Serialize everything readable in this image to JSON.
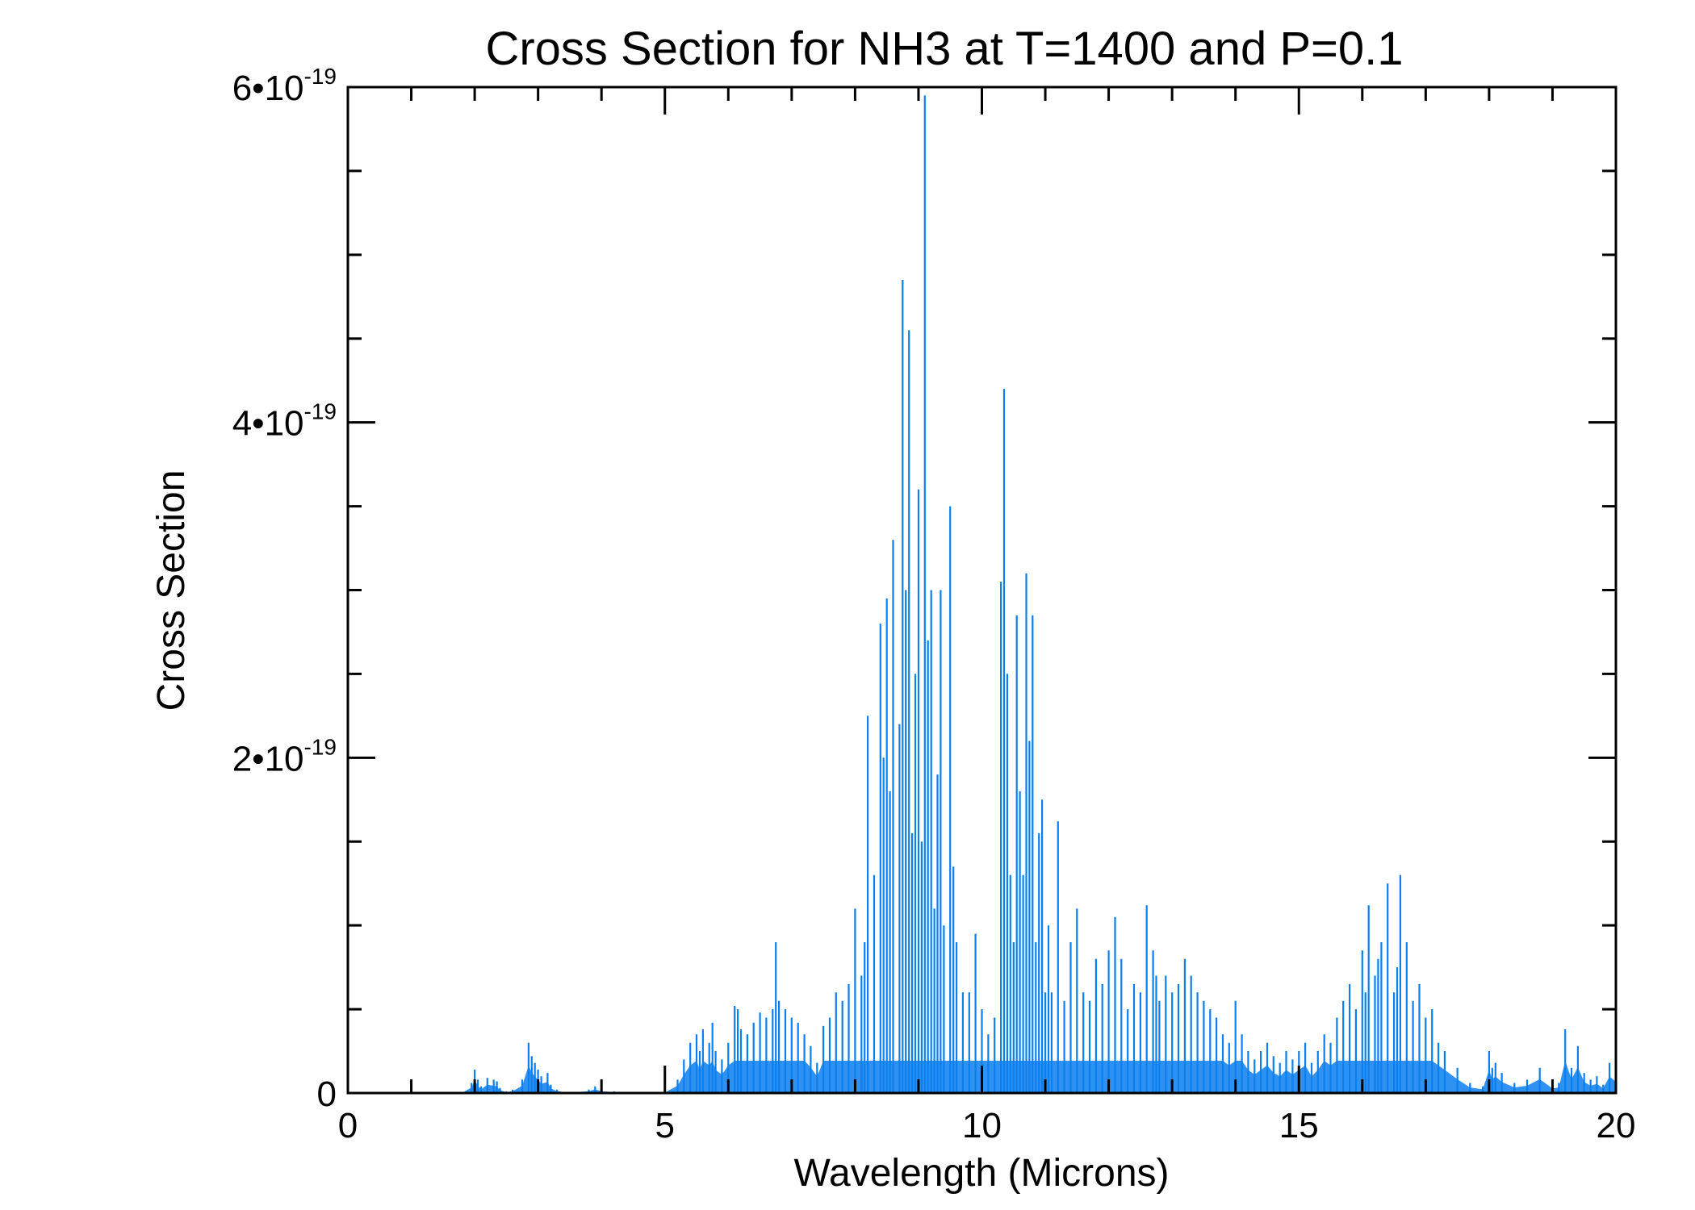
{
  "chart_data": {
    "type": "line",
    "title": "Cross Section for NH3 at T=1400 and P=0.1",
    "xlabel": "Wavelength (Microns)",
    "ylabel": "Cross Section",
    "xlim": [
      0,
      20
    ],
    "ylim": [
      0,
      6e-19
    ],
    "x_ticks": [
      0,
      5,
      10,
      15,
      20
    ],
    "x_tick_labels": [
      "0",
      "5",
      "10",
      "15",
      "20"
    ],
    "y_ticks": [
      0,
      2e-19,
      4e-19,
      6e-19
    ],
    "y_tick_labels": [
      {
        "mantissa": "0",
        "exponent": ""
      },
      {
        "mantissa": "2•10",
        "exponent": "-19"
      },
      {
        "mantissa": "4•10",
        "exponent": "-19"
      },
      {
        "mantissa": "6•10",
        "exponent": "-19"
      }
    ],
    "grid": false,
    "line_color": "#0a7ff0",
    "series": [
      {
        "x": [
          1.0,
          1.8,
          1.95,
          2.0,
          2.05,
          2.1,
          2.2,
          2.3,
          2.35,
          2.4,
          2.5,
          2.6,
          2.75,
          2.85,
          2.9,
          2.95,
          3.0,
          3.05,
          3.15,
          3.2,
          3.3,
          3.5,
          3.8,
          3.9,
          4.0,
          4.2,
          4.5,
          5.0,
          5.2,
          5.3,
          5.4,
          5.5,
          5.55,
          5.6,
          5.7,
          5.75,
          5.8,
          5.9,
          6.0,
          6.1,
          6.15,
          6.2,
          6.3,
          6.4,
          6.5,
          6.6,
          6.7,
          6.75,
          6.8,
          6.9,
          7.0,
          7.1,
          7.2,
          7.3,
          7.4,
          7.5,
          7.6,
          7.7,
          7.8,
          7.9,
          8.0,
          8.1,
          8.15,
          8.2,
          8.3,
          8.4,
          8.45,
          8.5,
          8.55,
          8.6,
          8.7,
          8.75,
          8.8,
          8.85,
          8.9,
          8.95,
          9.0,
          9.05,
          9.1,
          9.15,
          9.2,
          9.25,
          9.3,
          9.35,
          9.4,
          9.5,
          9.55,
          9.6,
          9.7,
          9.8,
          9.9,
          10.0,
          10.1,
          10.2,
          10.3,
          10.35,
          10.4,
          10.45,
          10.5,
          10.55,
          10.6,
          10.65,
          10.7,
          10.75,
          10.8,
          10.85,
          10.9,
          10.95,
          11.0,
          11.05,
          11.1,
          11.2,
          11.3,
          11.4,
          11.5,
          11.6,
          11.7,
          11.8,
          11.9,
          12.0,
          12.1,
          12.2,
          12.3,
          12.4,
          12.5,
          12.6,
          12.7,
          12.75,
          12.8,
          12.9,
          13.0,
          13.1,
          13.2,
          13.3,
          13.4,
          13.5,
          13.6,
          13.7,
          13.8,
          13.9,
          14.0,
          14.1,
          14.2,
          14.3,
          14.4,
          14.5,
          14.6,
          14.7,
          14.8,
          14.9,
          15.0,
          15.1,
          15.2,
          15.3,
          15.4,
          15.5,
          15.6,
          15.7,
          15.8,
          15.9,
          16.0,
          16.05,
          16.1,
          16.2,
          16.25,
          16.3,
          16.4,
          16.5,
          16.55,
          16.6,
          16.7,
          16.8,
          16.9,
          17.0,
          17.1,
          17.2,
          17.3,
          17.5,
          17.7,
          17.9,
          18.0,
          18.05,
          18.1,
          18.2,
          18.4,
          18.6,
          18.8,
          19.0,
          19.1,
          19.2,
          19.3,
          19.4,
          19.5,
          19.6,
          19.7,
          19.8,
          19.9,
          20.0
        ],
        "y": [
          0,
          0.002,
          0.06,
          0.14,
          0.08,
          0.04,
          0.09,
          0.08,
          0.07,
          0.03,
          0.01,
          0.02,
          0.08,
          0.3,
          0.22,
          0.18,
          0.14,
          0.1,
          0.12,
          0.05,
          0.02,
          0.005,
          0.02,
          0.04,
          0.02,
          0.01,
          0.005,
          0.005,
          0.08,
          0.2,
          0.3,
          0.35,
          0.25,
          0.38,
          0.3,
          0.42,
          0.25,
          0.2,
          0.3,
          0.52,
          0.5,
          0.38,
          0.35,
          0.42,
          0.48,
          0.45,
          0.5,
          0.9,
          0.55,
          0.5,
          0.45,
          0.42,
          0.35,
          0.28,
          0.18,
          0.4,
          0.45,
          0.6,
          0.55,
          0.65,
          1.1,
          0.7,
          0.9,
          2.25,
          1.3,
          2.8,
          2.0,
          2.95,
          1.8,
          3.3,
          2.2,
          4.85,
          3.0,
          4.55,
          1.55,
          2.5,
          3.6,
          1.5,
          5.95,
          2.7,
          3.0,
          1.1,
          1.9,
          3.0,
          1.0,
          3.5,
          1.35,
          0.9,
          0.6,
          0.6,
          0.95,
          0.5,
          0.35,
          0.45,
          3.05,
          4.2,
          2.5,
          1.3,
          0.9,
          2.85,
          1.8,
          1.3,
          3.1,
          2.1,
          2.85,
          0.9,
          1.55,
          1.75,
          0.6,
          1.0,
          0.6,
          1.62,
          0.55,
          0.9,
          1.1,
          0.6,
          0.55,
          0.8,
          0.65,
          0.85,
          1.05,
          0.8,
          0.5,
          0.65,
          0.6,
          1.12,
          0.85,
          0.7,
          0.55,
          0.7,
          0.6,
          0.65,
          0.8,
          0.7,
          0.6,
          0.55,
          0.5,
          0.45,
          0.35,
          0.3,
          0.55,
          0.35,
          0.25,
          0.2,
          0.25,
          0.3,
          0.22,
          0.18,
          0.25,
          0.2,
          0.25,
          0.3,
          0.18,
          0.25,
          0.35,
          0.3,
          0.45,
          0.55,
          0.65,
          0.5,
          0.85,
          0.6,
          1.12,
          0.7,
          0.8,
          0.9,
          1.25,
          0.6,
          0.75,
          1.3,
          0.9,
          0.55,
          0.65,
          0.45,
          0.5,
          0.3,
          0.25,
          0.15,
          0.06,
          0.04,
          0.25,
          0.15,
          0.18,
          0.12,
          0.06,
          0.08,
          0.15,
          0.05,
          0.06,
          0.38,
          0.15,
          0.28,
          0.12,
          0.08,
          0.1,
          0.05,
          0.18,
          0.12
        ]
      }
    ]
  }
}
